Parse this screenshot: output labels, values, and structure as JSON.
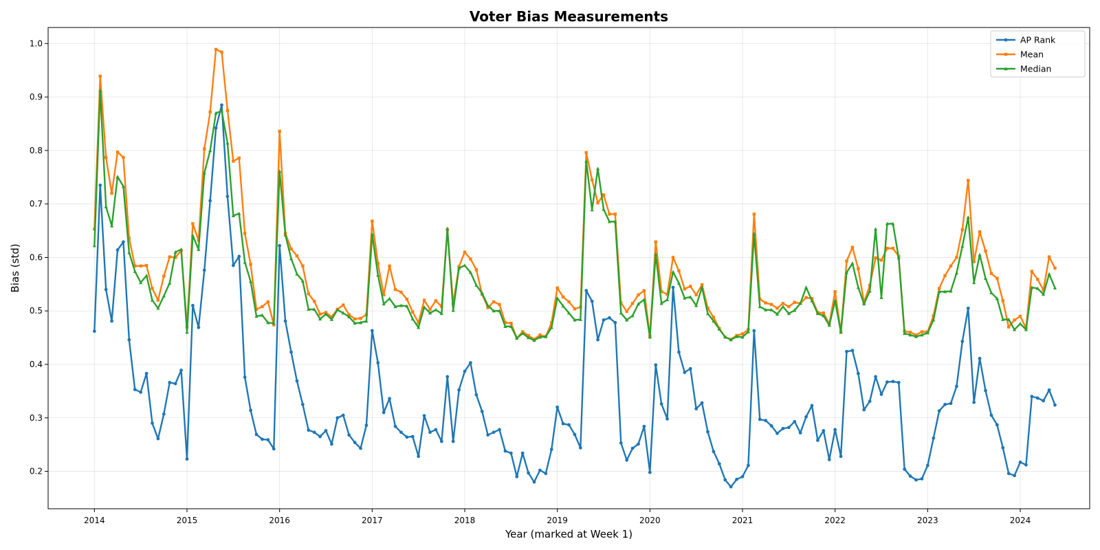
{
  "chart_data": {
    "type": "line",
    "title": "Voter Bias Measurements",
    "xlabel": "Year (marked at Week 1)",
    "ylabel": "Bias (std)",
    "xlim": [
      2013.5,
      2024.75
    ],
    "ylim": [
      0.13,
      1.03
    ],
    "x_ticks": [
      2014,
      2015,
      2016,
      2017,
      2018,
      2019,
      2020,
      2021,
      2022,
      2023,
      2024
    ],
    "y_ticks": [
      0.2,
      0.3,
      0.4,
      0.5,
      0.6,
      0.7,
      0.8,
      0.9,
      1.0
    ],
    "grid": true,
    "legend_position": "top-right",
    "x_start": 2014.0,
    "x_step": 0.0625,
    "series": [
      {
        "name": "AP Rank",
        "color": "#1f77b4",
        "marker": "circle",
        "values": [
          0.462,
          0.735,
          0.54,
          0.481,
          0.614,
          0.629,
          0.446,
          0.353,
          0.348,
          0.383,
          0.29,
          0.261,
          0.307,
          0.366,
          0.364,
          0.389,
          0.223,
          0.51,
          0.469,
          0.576,
          0.706,
          0.842,
          0.885,
          0.714,
          0.585,
          0.602,
          0.376,
          0.314,
          0.269,
          0.26,
          0.259,
          0.242,
          0.622,
          0.481,
          0.423,
          0.369,
          0.325,
          0.277,
          0.273,
          0.265,
          0.276,
          0.251,
          0.3,
          0.305,
          0.268,
          0.254,
          0.243,
          0.286,
          0.463,
          0.403,
          0.31,
          0.336,
          0.284,
          0.273,
          0.264,
          0.265,
          0.228,
          0.304,
          0.273,
          0.278,
          0.256,
          0.377,
          0.256,
          0.352,
          0.387,
          0.403,
          0.343,
          0.312,
          0.268,
          0.273,
          0.278,
          0.238,
          0.234,
          0.19,
          0.234,
          0.197,
          0.18,
          0.202,
          0.196,
          0.241,
          0.32,
          0.289,
          0.287,
          0.269,
          0.244,
          0.538,
          0.518,
          0.446,
          0.483,
          0.487,
          0.478,
          0.253,
          0.221,
          0.243,
          0.251,
          0.284,
          0.198,
          0.399,
          0.326,
          0.298,
          0.544,
          0.423,
          0.385,
          0.392,
          0.317,
          0.328,
          0.274,
          0.237,
          0.214,
          0.184,
          0.171,
          0.185,
          0.19,
          0.211,
          0.463,
          0.297,
          0.295,
          0.285,
          0.271,
          0.28,
          0.282,
          0.293,
          0.272,
          0.302,
          0.323,
          0.258,
          0.276,
          0.222,
          0.278,
          0.228,
          0.424,
          0.426,
          0.383,
          0.315,
          0.331,
          0.377,
          0.344,
          0.367,
          0.368,
          0.366,
          0.204,
          0.191,
          0.184,
          0.186,
          0.211,
          0.262,
          0.313,
          0.325,
          0.327,
          0.359,
          0.443,
          0.505,
          0.329,
          0.411,
          0.351,
          0.305,
          0.287,
          0.244,
          0.196,
          0.192,
          0.217,
          0.212,
          0.34,
          0.337,
          0.332,
          0.352,
          0.324
        ]
      },
      {
        "name": "Mean",
        "color": "#ff7f0e",
        "marker": "square",
        "values": [
          0.653,
          0.939,
          0.787,
          0.72,
          0.797,
          0.787,
          0.636,
          0.584,
          0.584,
          0.585,
          0.542,
          0.52,
          0.565,
          0.601,
          0.6,
          0.613,
          0.47,
          0.663,
          0.632,
          0.803,
          0.872,
          0.989,
          0.984,
          0.875,
          0.78,
          0.786,
          0.645,
          0.587,
          0.503,
          0.508,
          0.517,
          0.474,
          0.836,
          0.645,
          0.616,
          0.603,
          0.584,
          0.532,
          0.518,
          0.494,
          0.497,
          0.489,
          0.503,
          0.511,
          0.493,
          0.485,
          0.486,
          0.493,
          0.668,
          0.589,
          0.53,
          0.584,
          0.54,
          0.535,
          0.522,
          0.498,
          0.478,
          0.52,
          0.503,
          0.519,
          0.508,
          0.652,
          0.513,
          0.583,
          0.61,
          0.597,
          0.577,
          0.531,
          0.506,
          0.517,
          0.512,
          0.478,
          0.477,
          0.449,
          0.461,
          0.454,
          0.447,
          0.455,
          0.452,
          0.478,
          0.543,
          0.526,
          0.517,
          0.504,
          0.507,
          0.796,
          0.745,
          0.702,
          0.717,
          0.681,
          0.681,
          0.515,
          0.499,
          0.514,
          0.53,
          0.538,
          0.453,
          0.629,
          0.536,
          0.531,
          0.6,
          0.575,
          0.541,
          0.546,
          0.53,
          0.549,
          0.505,
          0.488,
          0.467,
          0.451,
          0.447,
          0.454,
          0.457,
          0.465,
          0.681,
          0.522,
          0.515,
          0.512,
          0.505,
          0.514,
          0.508,
          0.516,
          0.514,
          0.525,
          0.523,
          0.497,
          0.496,
          0.476,
          0.536,
          0.461,
          0.593,
          0.619,
          0.579,
          0.516,
          0.548,
          0.599,
          0.595,
          0.617,
          0.617,
          0.602,
          0.462,
          0.46,
          0.455,
          0.461,
          0.461,
          0.491,
          0.542,
          0.566,
          0.584,
          0.6,
          0.652,
          0.744,
          0.592,
          0.648,
          0.612,
          0.57,
          0.561,
          0.519,
          0.47,
          0.483,
          0.49,
          0.468,
          0.574,
          0.559,
          0.539,
          0.601,
          0.58
        ]
      },
      {
        "name": "Median",
        "color": "#2ca02c",
        "marker": "triangle",
        "values": [
          0.622,
          0.912,
          0.695,
          0.659,
          0.751,
          0.733,
          0.609,
          0.574,
          0.553,
          0.566,
          0.52,
          0.505,
          0.528,
          0.552,
          0.61,
          0.615,
          0.46,
          0.641,
          0.615,
          0.758,
          0.8,
          0.87,
          0.874,
          0.814,
          0.678,
          0.682,
          0.591,
          0.555,
          0.49,
          0.492,
          0.478,
          0.477,
          0.761,
          0.642,
          0.598,
          0.569,
          0.556,
          0.503,
          0.503,
          0.485,
          0.494,
          0.484,
          0.502,
          0.496,
          0.489,
          0.477,
          0.478,
          0.481,
          0.643,
          0.567,
          0.513,
          0.523,
          0.508,
          0.51,
          0.509,
          0.485,
          0.469,
          0.507,
          0.496,
          0.502,
          0.495,
          0.654,
          0.501,
          0.58,
          0.585,
          0.572,
          0.548,
          0.533,
          0.51,
          0.5,
          0.5,
          0.471,
          0.471,
          0.449,
          0.458,
          0.45,
          0.445,
          0.451,
          0.452,
          0.469,
          0.524,
          0.509,
          0.496,
          0.483,
          0.484,
          0.78,
          0.689,
          0.766,
          0.69,
          0.667,
          0.667,
          0.496,
          0.483,
          0.491,
          0.513,
          0.521,
          0.451,
          0.606,
          0.514,
          0.521,
          0.573,
          0.552,
          0.524,
          0.526,
          0.51,
          0.544,
          0.495,
          0.481,
          0.466,
          0.451,
          0.446,
          0.452,
          0.451,
          0.461,
          0.644,
          0.508,
          0.502,
          0.502,
          0.494,
          0.508,
          0.495,
          0.501,
          0.514,
          0.544,
          0.519,
          0.495,
          0.491,
          0.473,
          0.519,
          0.46,
          0.572,
          0.589,
          0.544,
          0.513,
          0.537,
          0.653,
          0.525,
          0.663,
          0.663,
          0.599,
          0.458,
          0.455,
          0.452,
          0.455,
          0.459,
          0.483,
          0.536,
          0.536,
          0.537,
          0.571,
          0.621,
          0.675,
          0.553,
          0.605,
          0.561,
          0.534,
          0.523,
          0.484,
          0.484,
          0.465,
          0.476,
          0.465,
          0.544,
          0.542,
          0.531,
          0.569,
          0.543
        ]
      }
    ]
  }
}
